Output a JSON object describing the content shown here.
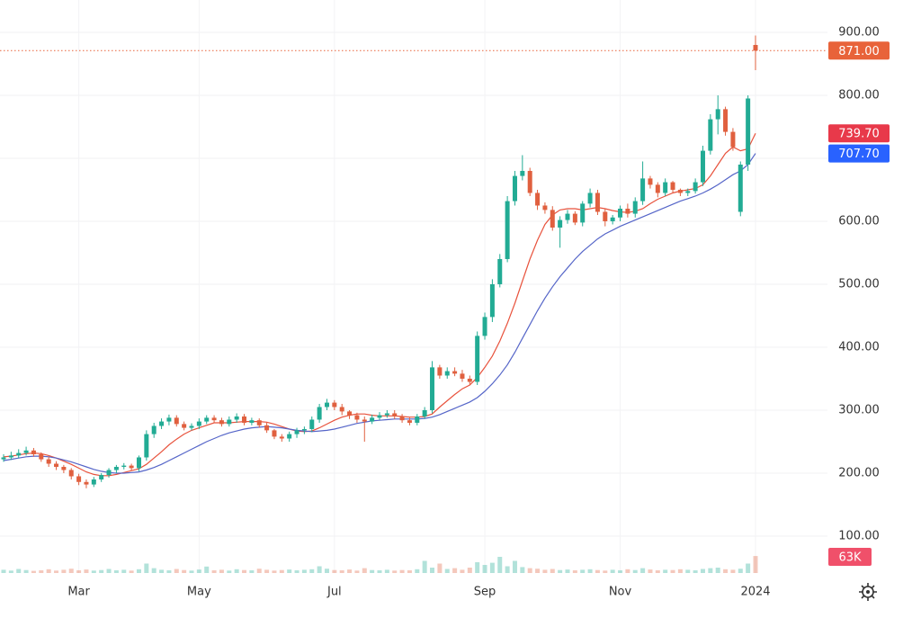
{
  "chart_data": {
    "type": "candlestick",
    "categories": [
      null,
      null,
      null,
      null,
      null,
      null,
      null,
      null,
      null,
      null,
      "Mar",
      null,
      null,
      null,
      null,
      null,
      null,
      null,
      null,
      null,
      null,
      null,
      null,
      null,
      null,
      null,
      "May",
      null,
      null,
      null,
      null,
      null,
      null,
      null,
      null,
      null,
      null,
      null,
      null,
      null,
      null,
      null,
      null,
      null,
      "Jul",
      null,
      null,
      null,
      null,
      null,
      null,
      null,
      null,
      null,
      null,
      null,
      null,
      null,
      null,
      null,
      null,
      null,
      null,
      null,
      "Sep",
      null,
      null,
      null,
      null,
      null,
      null,
      null,
      null,
      null,
      null,
      null,
      null,
      null,
      null,
      null,
      null,
      null,
      "Nov",
      null,
      null,
      null,
      null,
      null,
      null,
      null,
      null,
      null,
      null,
      null,
      null,
      null,
      null,
      null,
      null,
      null,
      "2024"
    ],
    "open": [
      222,
      225,
      228,
      232,
      236,
      230,
      222,
      215,
      210,
      205,
      195,
      186,
      182,
      190,
      197,
      205,
      210,
      212,
      208,
      225,
      262,
      275,
      282,
      288,
      278,
      272,
      275,
      282,
      288,
      284,
      278,
      285,
      290,
      280,
      284,
      276,
      268,
      258,
      255,
      262,
      268,
      270,
      285,
      305,
      312,
      305,
      298,
      292,
      285,
      282,
      288,
      292,
      295,
      290,
      284,
      280,
      290,
      300,
      368,
      355,
      362,
      358,
      350,
      345,
      418,
      448,
      500,
      540,
      632,
      672,
      680,
      645,
      625,
      618,
      590,
      602,
      612,
      598,
      628,
      645,
      615,
      600,
      606,
      620,
      612,
      632,
      668,
      658,
      645,
      662,
      650,
      645,
      648,
      662,
      712,
      762,
      778,
      742,
      615,
      690,
      880
    ],
    "high": [
      230,
      234,
      238,
      242,
      240,
      233,
      226,
      219,
      213,
      208,
      199,
      190,
      194,
      200,
      208,
      213,
      216,
      215,
      228,
      268,
      280,
      287,
      293,
      292,
      282,
      279,
      287,
      292,
      292,
      288,
      290,
      295,
      294,
      288,
      287,
      280,
      270,
      262,
      266,
      272,
      274,
      290,
      310,
      318,
      316,
      310,
      300,
      296,
      290,
      293,
      297,
      300,
      300,
      294,
      288,
      294,
      305,
      378,
      372,
      368,
      368,
      364,
      355,
      425,
      455,
      508,
      548,
      640,
      680,
      705,
      685,
      650,
      630,
      624,
      608,
      618,
      616,
      632,
      652,
      650,
      620,
      610,
      625,
      628,
      638,
      695,
      672,
      662,
      668,
      664,
      652,
      652,
      668,
      720,
      770,
      800,
      782,
      748,
      695,
      800,
      895
    ],
    "low": [
      218,
      221,
      224,
      228,
      226,
      218,
      210,
      205,
      200,
      190,
      181,
      176,
      178,
      186,
      193,
      200,
      206,
      204,
      203,
      220,
      256,
      270,
      276,
      274,
      268,
      268,
      270,
      278,
      280,
      274,
      274,
      280,
      276,
      276,
      272,
      264,
      254,
      250,
      250,
      256,
      262,
      265,
      280,
      300,
      300,
      292,
      286,
      280,
      250,
      278,
      284,
      288,
      286,
      280,
      276,
      276,
      286,
      295,
      350,
      350,
      354,
      345,
      340,
      340,
      412,
      440,
      495,
      535,
      625,
      665,
      640,
      618,
      612,
      585,
      558,
      596,
      594,
      592,
      622,
      610,
      592,
      595,
      600,
      606,
      606,
      626,
      652,
      638,
      640,
      645,
      640,
      640,
      644,
      656,
      706,
      738,
      736,
      712,
      608,
      680,
      840
    ],
    "close": [
      225,
      228,
      232,
      236,
      230,
      222,
      215,
      210,
      205,
      195,
      186,
      182,
      190,
      197,
      205,
      210,
      212,
      208,
      225,
      262,
      275,
      282,
      288,
      278,
      272,
      275,
      282,
      288,
      284,
      278,
      285,
      290,
      280,
      284,
      276,
      268,
      258,
      255,
      262,
      268,
      270,
      285,
      305,
      312,
      305,
      298,
      292,
      285,
      282,
      288,
      292,
      295,
      290,
      284,
      280,
      290,
      300,
      368,
      355,
      362,
      358,
      350,
      345,
      418,
      448,
      500,
      540,
      632,
      672,
      680,
      645,
      625,
      618,
      590,
      602,
      612,
      598,
      628,
      645,
      615,
      600,
      606,
      620,
      612,
      632,
      668,
      658,
      645,
      662,
      650,
      645,
      648,
      662,
      712,
      762,
      778,
      742,
      718,
      690,
      795,
      871
    ],
    "up_color": "#22ab94",
    "down_color": "#e0603f",
    "series": [
      {
        "color": "#e8523c",
        "values": [
          226,
          227,
          229,
          231,
          232,
          231,
          228,
          224,
          219,
          214,
          208,
          202,
          198,
          196,
          196,
          198,
          201,
          204,
          207,
          214,
          224,
          234,
          245,
          254,
          262,
          268,
          272,
          276,
          280,
          280,
          280,
          281,
          282,
          282,
          282,
          281,
          278,
          274,
          270,
          267,
          266,
          267,
          272,
          278,
          284,
          289,
          292,
          294,
          294,
          292,
          291,
          291,
          291,
          290,
          289,
          289,
          290,
          294,
          305,
          315,
          325,
          334,
          340,
          352,
          368,
          386,
          410,
          438,
          470,
          505,
          540,
          570,
          595,
          610,
          618,
          620,
          620,
          618,
          620,
          622,
          620,
          617,
          615,
          614,
          616,
          620,
          628,
          635,
          640,
          645,
          648,
          650,
          652,
          658,
          672,
          690,
          708,
          718,
          712,
          715,
          739.7
        ]
      },
      {
        "color": "#5565c8",
        "values": [
          220,
          222,
          224,
          226,
          227,
          227,
          226,
          224,
          221,
          218,
          214,
          210,
          206,
          203,
          201,
          200,
          200,
          201,
          202,
          205,
          209,
          214,
          220,
          226,
          232,
          238,
          244,
          250,
          255,
          260,
          264,
          267,
          270,
          272,
          273,
          274,
          273,
          272,
          270,
          268,
          267,
          266,
          267,
          268,
          270,
          273,
          276,
          279,
          281,
          283,
          284,
          285,
          286,
          286,
          286,
          286,
          287,
          289,
          293,
          298,
          303,
          308,
          313,
          320,
          330,
          342,
          356,
          372,
          392,
          414,
          436,
          458,
          478,
          496,
          512,
          526,
          540,
          552,
          562,
          572,
          580,
          586,
          592,
          597,
          602,
          607,
          612,
          617,
          622,
          627,
          632,
          636,
          640,
          645,
          651,
          658,
          666,
          674,
          680,
          690,
          707.7
        ]
      }
    ],
    "volume": [
      12000,
      9000,
      15000,
      11000,
      8000,
      10000,
      14000,
      9000,
      12000,
      16000,
      10000,
      13000,
      9000,
      11000,
      15000,
      10000,
      12000,
      9000,
      14000,
      35000,
      18000,
      12000,
      10000,
      15000,
      11000,
      9000,
      13000,
      24000,
      10000,
      12000,
      9000,
      14000,
      11000,
      10000,
      16000,
      12000,
      9000,
      11000,
      13000,
      10000,
      12000,
      14000,
      25000,
      16000,
      11000,
      10000,
      13000,
      9000,
      18000,
      11000,
      10000,
      12000,
      9000,
      11000,
      10000,
      14000,
      45000,
      20000,
      35000,
      15000,
      18000,
      12000,
      20000,
      40000,
      30000,
      38000,
      60000,
      25000,
      45000,
      22000,
      18000,
      16000,
      12000,
      15000,
      11000,
      13000,
      10000,
      12000,
      14000,
      11000,
      9000,
      12000,
      10000,
      14000,
      11000,
      18000,
      13000,
      10000,
      12000,
      11000,
      14000,
      12000,
      10000,
      15000,
      18000,
      20000,
      14000,
      12000,
      16000,
      35000,
      63000
    ],
    "volume_ylim": [
      0,
      200000
    ],
    "ylim": [
      41.4,
      951.4
    ],
    "yticks": [
      {
        "value": 100,
        "label": "100.00"
      },
      {
        "value": 200,
        "label": "200.00"
      },
      {
        "value": 300,
        "label": "300.00"
      },
      {
        "value": 400,
        "label": "400.00"
      },
      {
        "value": 500,
        "label": "500.00"
      },
      {
        "value": 600,
        "label": "600.00"
      },
      {
        "value": 700,
        "label": "700.00"
      },
      {
        "value": 800,
        "label": "800.00"
      },
      {
        "value": 900,
        "label": "900.00"
      }
    ],
    "price_markers": [
      {
        "value": 871,
        "label": "871.00",
        "color": "#e8633a"
      },
      {
        "value": 739.7,
        "label": "739.70",
        "color": "#e8394a"
      },
      {
        "value": 707.7,
        "label": "707.70",
        "color": "#2962ff"
      }
    ],
    "volume_marker": {
      "value": 63000,
      "label": "63K",
      "color": "#f0506a"
    }
  }
}
